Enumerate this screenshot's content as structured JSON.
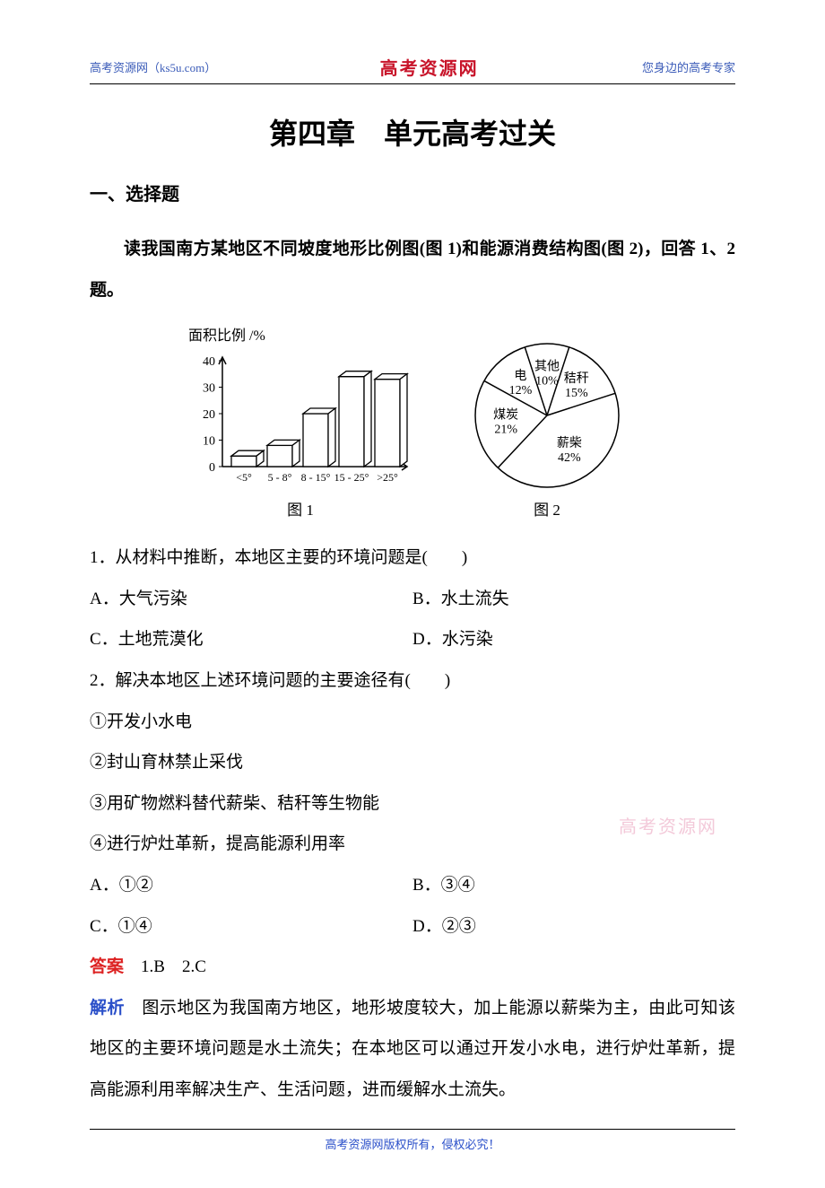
{
  "header": {
    "left": "高考资源网（ks5u.com）",
    "center": "高考资源网",
    "right": "您身边的高考专家"
  },
  "title": "第四章　单元高考过关",
  "section1": "一、选择题",
  "intro": "读我国南方某地区不同坡度地形比例图(图 1)和能源消费结构图(图 2)，回答 1、2 题。",
  "bar_chart": {
    "type": "bar",
    "axis_title": "面积比例 /%",
    "categories": [
      "<5°",
      "5 - 8°",
      "8 - 15°",
      "15 - 25°",
      ">25°"
    ],
    "values": [
      4,
      8,
      20,
      34,
      33
    ],
    "ylim": [
      0,
      40
    ],
    "ytick_step": 10,
    "yticks": [
      "0",
      "10",
      "20",
      "30",
      "40"
    ],
    "bar_fill": "#ffffff",
    "bar_stroke": "#000000",
    "background_color": "#ffffff",
    "caption": "图 1",
    "label_fontsize": 14,
    "title_fontsize": 16
  },
  "pie_chart": {
    "type": "pie",
    "slices": [
      {
        "label": "秸秆",
        "pct": 15,
        "text": "秸秆\n15%",
        "start": -72,
        "sweep": 54
      },
      {
        "label": "薪柴",
        "pct": 42,
        "text": "薪柴\n42%",
        "start": -18,
        "sweep": 151.2
      },
      {
        "label": "煤炭",
        "pct": 21,
        "text": "煤炭\n21%",
        "start": 133.2,
        "sweep": 75.6
      },
      {
        "label": "电",
        "pct": 12,
        "text": "电\n12%",
        "start": 208.8,
        "sweep": 43.2
      },
      {
        "label": "其他",
        "pct": 10,
        "text": "其他\n10%",
        "start": 252,
        "sweep": 36
      }
    ],
    "fill": "#ffffff",
    "stroke": "#000000",
    "caption": "图 2",
    "label_fontsize": 14
  },
  "q1": {
    "stem": "1．从材料中推断，本地区主要的环境问题是(　　)",
    "A": "A．大气污染",
    "B": "B．水土流失",
    "C": "C．土地荒漠化",
    "D": "D．水污染"
  },
  "q2": {
    "stem": "2．解决本地区上述环境问题的主要途径有(　　)",
    "o1": "①开发小水电",
    "o2": "②封山育林禁止采伐",
    "o3": "③用矿物燃料替代薪柴、秸秆等生物能",
    "o4": "④进行炉灶革新，提高能源利用率",
    "A": "A．①②",
    "B": "B．③④",
    "C": "C．①④",
    "D": "D．②③"
  },
  "answer": {
    "label": "答案",
    "text": "　1.B　2.C"
  },
  "explain": {
    "label": "解析",
    "text": "　图示地区为我国南方地区，地形坡度较大，加上能源以薪柴为主，由此可知该地区的主要环境问题是水土流失；在本地区可以通过开发小水电，进行炉灶革新，提高能源利用率解决生产、生活问题，进而缓解水土流失。"
  },
  "watermark": "高考资源网",
  "footer": "高考资源网版权所有，侵权必究！"
}
